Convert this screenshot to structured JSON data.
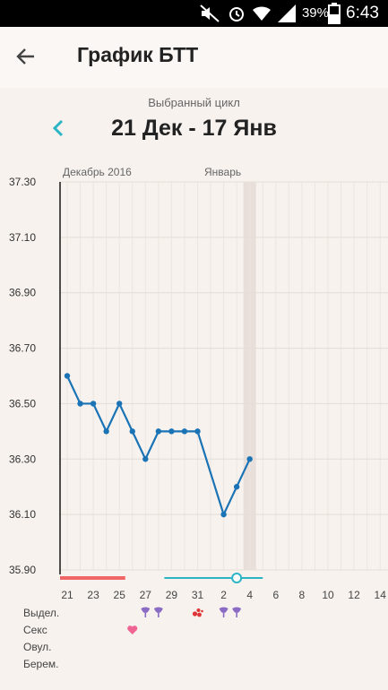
{
  "status_bar": {
    "time": "6:43",
    "battery": "39%"
  },
  "header": {
    "title": "График БТТ"
  },
  "cycle": {
    "label": "Выбранный цикл",
    "range": "21 Дек - 17 Янв"
  },
  "chart_data": {
    "type": "line",
    "month_labels": [
      "Декабрь 2016",
      "Январь"
    ],
    "y_ticks": [
      "37.30",
      "37.10",
      "36.90",
      "36.70",
      "36.50",
      "36.30",
      "36.10",
      "35.90"
    ],
    "ylim": [
      35.9,
      37.3
    ],
    "x_tick_labels": [
      "21",
      "23",
      "25",
      "27",
      "29",
      "31",
      "2",
      "4",
      "6",
      "8",
      "10",
      "12",
      "14"
    ],
    "points": [
      {
        "day": 21,
        "temp": 36.6
      },
      {
        "day": 22,
        "temp": 36.5
      },
      {
        "day": 23,
        "temp": 36.5
      },
      {
        "day": 24,
        "temp": 36.4
      },
      {
        "day": 25,
        "temp": 36.5
      },
      {
        "day": 26,
        "temp": 36.4
      },
      {
        "day": 27,
        "temp": 36.3
      },
      {
        "day": 28,
        "temp": 36.4
      },
      {
        "day": 29,
        "temp": 36.4
      },
      {
        "day": 30,
        "temp": 36.4
      },
      {
        "day": 31,
        "temp": 36.4
      },
      {
        "day": 2,
        "temp": 36.1
      },
      {
        "day": 3,
        "temp": 36.2
      },
      {
        "day": 4,
        "temp": 36.3
      }
    ],
    "highlight_day": 4,
    "today_day": 3,
    "grid": true
  },
  "rows": {
    "discharge": "Выдел.",
    "sex": "Секс",
    "ovulation": "Овул.",
    "pregnancy": "Берем."
  },
  "colors": {
    "accent": "#2bb5c4",
    "line": "#1a73b5",
    "period": "#f06666",
    "discharge_icon": "#8b6cc4",
    "blood_icon": "#e03535",
    "heart": "#f06493"
  }
}
